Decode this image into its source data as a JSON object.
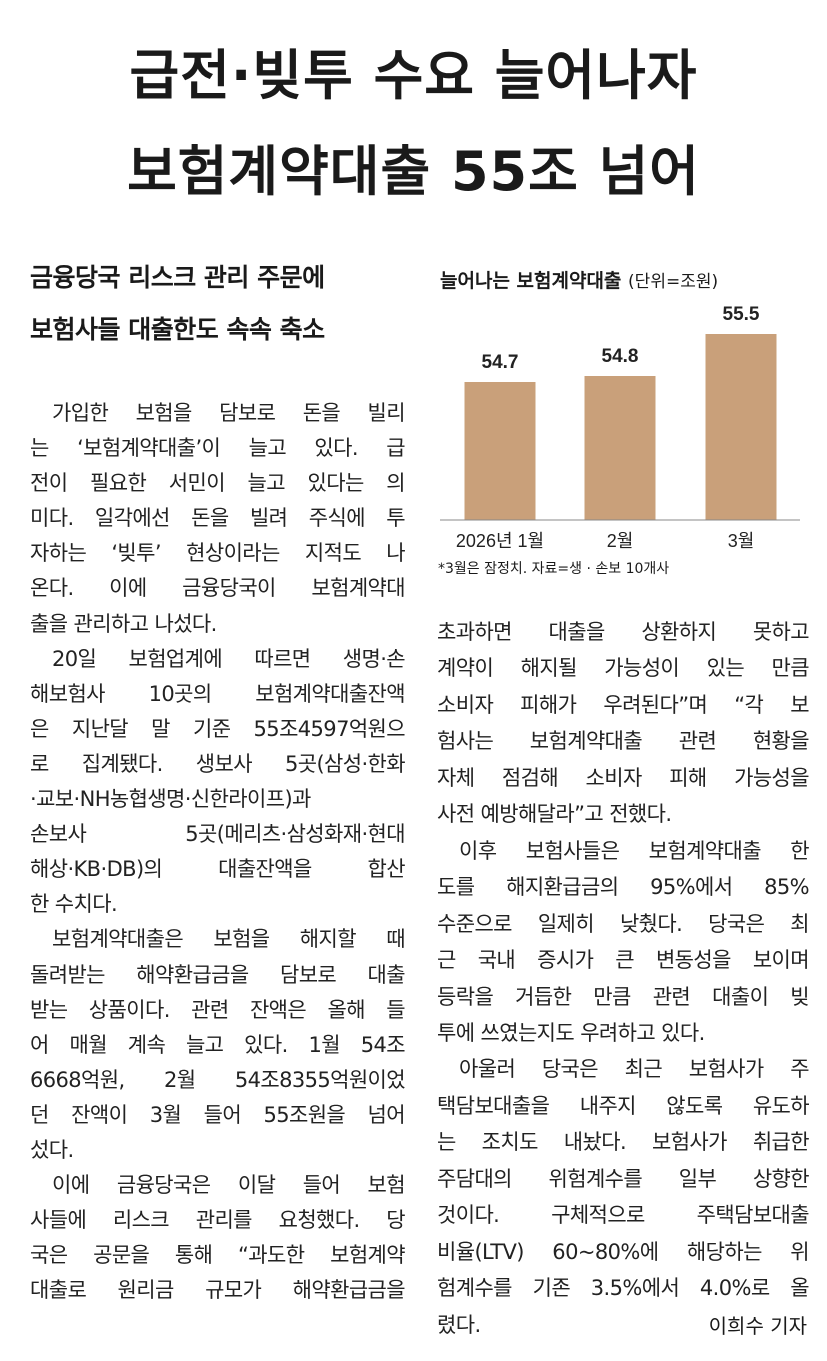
{
  "headline": [
    "급전·빚투 수요 늘어나자",
    "보험계약대출 55조 넘어"
  ],
  "subheadline": [
    "금융당국 리스크 관리 주문에",
    "보험사들 대출한도 속속 축소"
  ],
  "chart_data": {
    "type": "bar",
    "title": "늘어나는 보험계약대출",
    "unit": "(단위=조원)",
    "categories": [
      "2026년 1월",
      "2월",
      "3월"
    ],
    "values": [
      54.7,
      54.8,
      55.5
    ],
    "value_labels": [
      "54.7",
      "54.8",
      "55.5"
    ],
    "bar_color": "#c9a07a",
    "grid": false,
    "footnote": "*3월은 잠정치. 자료=생 · 손보 10개사"
  },
  "left_column": [
    {
      "t": "가입한 보험을 담보로 돈을 빌리",
      "c": "ind"
    },
    {
      "t": "는 ‘보험계약대출’이 늘고 있다. 급"
    },
    {
      "t": "전이 필요한 서민이 늘고 있다는 의"
    },
    {
      "t": "미다. 일각에선 돈을 빌려 주식에 투"
    },
    {
      "t": "자하는 ‘빚투’ 현상이라는 지적도 나"
    },
    {
      "t": "온다. 이에 금융당국이 보험계약대"
    },
    {
      "t": "출을 관리하고 나섰다.",
      "c": "last"
    },
    {
      "t": "20일 보험업계에 따르면 생명·손",
      "c": "ind"
    },
    {
      "t": "해보험사 10곳의 보험계약대출잔액"
    },
    {
      "t": "은 지난달 말 기준 55조4597억원으"
    },
    {
      "t": "로 집계됐다. 생보사 5곳(삼성·한화"
    },
    {
      "t": "·교보·NH농협생명·신한라이프)과"
    },
    {
      "t": "손보사 5곳(메리츠·삼성화재·현대"
    },
    {
      "t": "해상·KB·DB)의 대출잔액을 합산"
    },
    {
      "t": "한 수치다.",
      "c": "last"
    },
    {
      "t": "보험계약대출은 보험을 해지할 때",
      "c": "ind"
    },
    {
      "t": "돌려받는 해약환급금을 담보로 대출"
    },
    {
      "t": "받는 상품이다. 관련 잔액은 올해 들"
    },
    {
      "t": "어 매월 계속 늘고 있다. 1월 54조"
    },
    {
      "t": "6668억원, 2월 54조8355억원이었"
    },
    {
      "t": "던 잔액이 3월 들어 55조원을 넘어"
    },
    {
      "t": "섰다.",
      "c": "last"
    },
    {
      "t": "이에 금융당국은 이달 들어 보험",
      "c": "ind"
    },
    {
      "t": "사들에 리스크 관리를 요청했다. 당"
    },
    {
      "t": "국은 공문을 통해 “과도한 보험계약"
    },
    {
      "t": "대출로 원리금 규모가 해약환급금을"
    }
  ],
  "right_column": [
    {
      "t": "초과하면 대출을 상환하지 못하고"
    },
    {
      "t": "계약이 해지될 가능성이 있는 만큼"
    },
    {
      "t": "소비자 피해가 우려된다”며 “각 보"
    },
    {
      "t": "험사는 보험계약대출 관련 현황을"
    },
    {
      "t": "자체 점검해 소비자 피해 가능성을"
    },
    {
      "t": "사전 예방해달라”고 전했다.",
      "c": "last"
    },
    {
      "t": "이후 보험사들은 보험계약대출 한",
      "c": "ind"
    },
    {
      "t": "도를 해지환급금의 95%에서 85%"
    },
    {
      "t": "수준으로 일제히 낮췄다. 당국은 최"
    },
    {
      "t": "근 국내 증시가 큰 변동성을 보이며"
    },
    {
      "t": "등락을 거듭한 만큼 관련 대출이 빚"
    },
    {
      "t": "투에 쓰였는지도 우려하고 있다.",
      "c": "last"
    },
    {
      "t": "아울러 당국은 최근 보험사가 주",
      "c": "ind"
    },
    {
      "t": "택담보대출을 내주지 않도록 유도하"
    },
    {
      "t": "는 조치도 내놨다. 보험사가 취급한"
    },
    {
      "t": "주담대의 위험계수를 일부 상향한"
    },
    {
      "t": "것이다. 구체적으로 주택담보대출"
    },
    {
      "t": "비율(LTV) 60~80%에 해당하는 위"
    },
    {
      "t": "험계수를 기존 3.5%에서 4.0%로 올"
    },
    {
      "t": "렸다.",
      "c": "last"
    }
  ],
  "byline": "이희수 기자"
}
